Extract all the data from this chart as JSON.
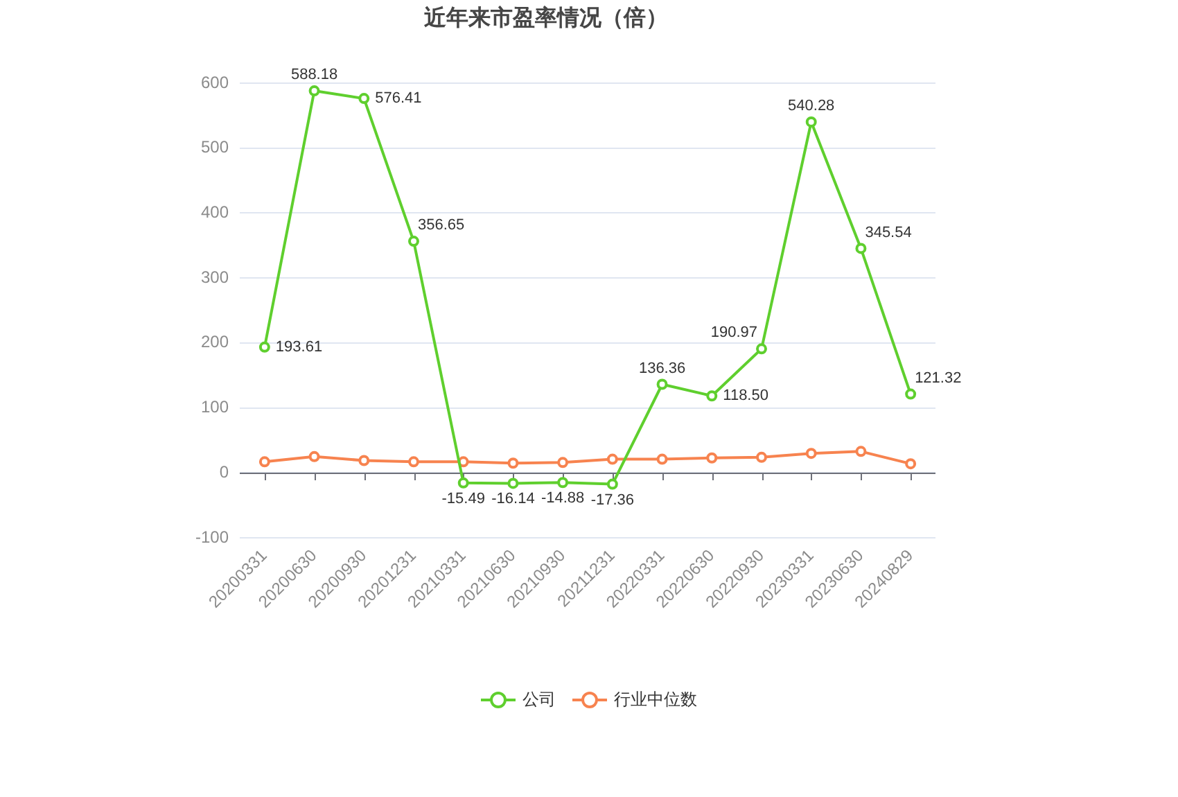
{
  "chart_data": {
    "type": "line",
    "title": "近年来市盈率情况（倍）",
    "categories": [
      "20200331",
      "20200630",
      "20200930",
      "20201231",
      "20210331",
      "20210630",
      "20210930",
      "20211231",
      "20220331",
      "20220630",
      "20220930",
      "20230331",
      "20230630",
      "20240829"
    ],
    "series": [
      {
        "name": "公司",
        "color": "#5fcf2e",
        "values": [
          193.61,
          588.18,
          576.41,
          356.65,
          -15.49,
          -16.14,
          -14.88,
          -17.36,
          136.36,
          118.5,
          190.97,
          540.28,
          345.54,
          121.32
        ],
        "value_labels": [
          "193.61",
          "588.18",
          "576.41",
          "356.65",
          "-15.49",
          "-16.14",
          "-14.88",
          "-17.36",
          "136.36",
          "118.50",
          "190.97",
          "540.28",
          "345.54",
          "121.32"
        ]
      },
      {
        "name": "行业中位数",
        "color": "#f7834f",
        "values": [
          17,
          25,
          19,
          17,
          17,
          15,
          16,
          21,
          21,
          23,
          24,
          30,
          33,
          14
        ]
      }
    ],
    "ylim": [
      -100,
      600
    ],
    "yticks": [
      -100,
      0,
      100,
      200,
      300,
      400,
      500,
      600
    ],
    "grid": "y",
    "legend": "bottom",
    "marker": "circle",
    "line_style": "solid"
  }
}
